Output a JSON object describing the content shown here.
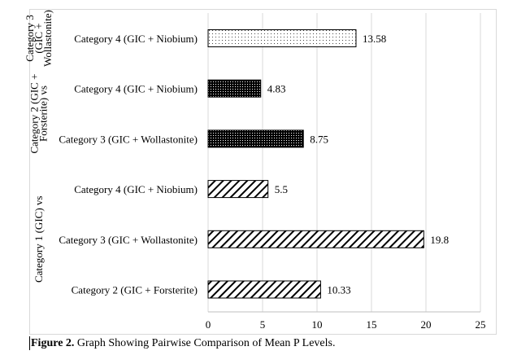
{
  "chart_data": {
    "type": "bar",
    "orientation": "horizontal",
    "groups": [
      {
        "label_lines": [
          "Category 3",
          "(GIC +",
          "Wollastonite)"
        ],
        "bars": [
          {
            "label": "Category 4 (GIC + Niobium)",
            "value": 13.58,
            "value_label": "13.58",
            "pattern": "dots"
          }
        ]
      },
      {
        "label_lines": [
          "Category 2 (GIC +",
          "Forsterite) vs"
        ],
        "bars": [
          {
            "label": "Category 4 (GIC + Niobium)",
            "value": 4.83,
            "value_label": "4.83",
            "pattern": "dense"
          },
          {
            "label": "Category 3 (GIC + Wollastonite)",
            "value": 8.75,
            "value_label": "8.75",
            "pattern": "dense"
          }
        ]
      },
      {
        "label_lines": [
          "Category 1 (GIC) vs"
        ],
        "bars": [
          {
            "label": "Category 4 (GIC + Niobium)",
            "value": 5.5,
            "value_label": "5.5",
            "pattern": "diagonal"
          },
          {
            "label": "Category 3 (GIC + Wollastonite)",
            "value": 19.8,
            "value_label": "19.8",
            "pattern": "diagonal"
          },
          {
            "label": "Category 2 (GIC + Forsterite)",
            "value": 10.33,
            "value_label": "10.33",
            "pattern": "diagonal"
          }
        ]
      }
    ],
    "xlim": [
      0,
      25
    ],
    "xticks": [
      "0",
      "5",
      "10",
      "15",
      "20",
      "25"
    ],
    "grid": "vertical",
    "title": "",
    "xlabel": "",
    "ylabel": ""
  },
  "caption": {
    "bold": "Figure 2.",
    "text": " Graph Showing Pairwise Comparison of Mean P Levels."
  }
}
